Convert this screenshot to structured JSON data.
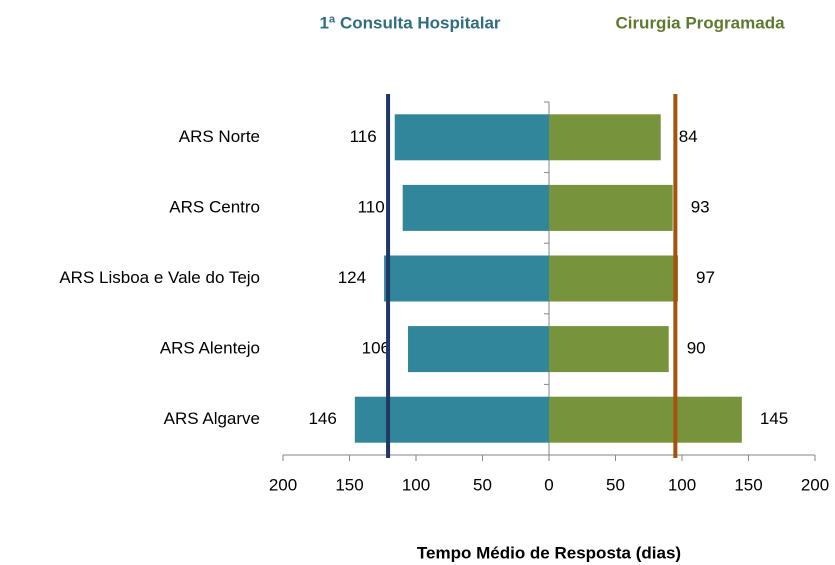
{
  "chart_data": {
    "type": "diverging_bar",
    "xlabel": "Tempo Médio de Resposta (dias)",
    "categories": [
      "ARS Norte",
      "ARS Centro",
      "ARS Lisboa e Vale do Tejo",
      "ARS Alentejo",
      "ARS Algarve"
    ],
    "series": [
      {
        "name": "1ª Consulta Hospitalar",
        "color": "#31869b",
        "side": "left",
        "values": [
          116,
          110,
          124,
          106,
          146
        ],
        "reference": 121,
        "reference_color": "#1f3864"
      },
      {
        "name": "Cirurgia Programada",
        "color": "#77933c",
        "side": "right",
        "values": [
          84,
          93,
          97,
          90,
          145
        ],
        "reference": 95,
        "reference_color": "#a5520f"
      }
    ],
    "xlim": [
      -200,
      200
    ],
    "xticks": [
      {
        "value": -200,
        "label": "200"
      },
      {
        "value": -150,
        "label": "150"
      },
      {
        "value": -100,
        "label": "100"
      },
      {
        "value": -50,
        "label": "50"
      },
      0,
      50,
      100,
      150,
      200
    ]
  }
}
